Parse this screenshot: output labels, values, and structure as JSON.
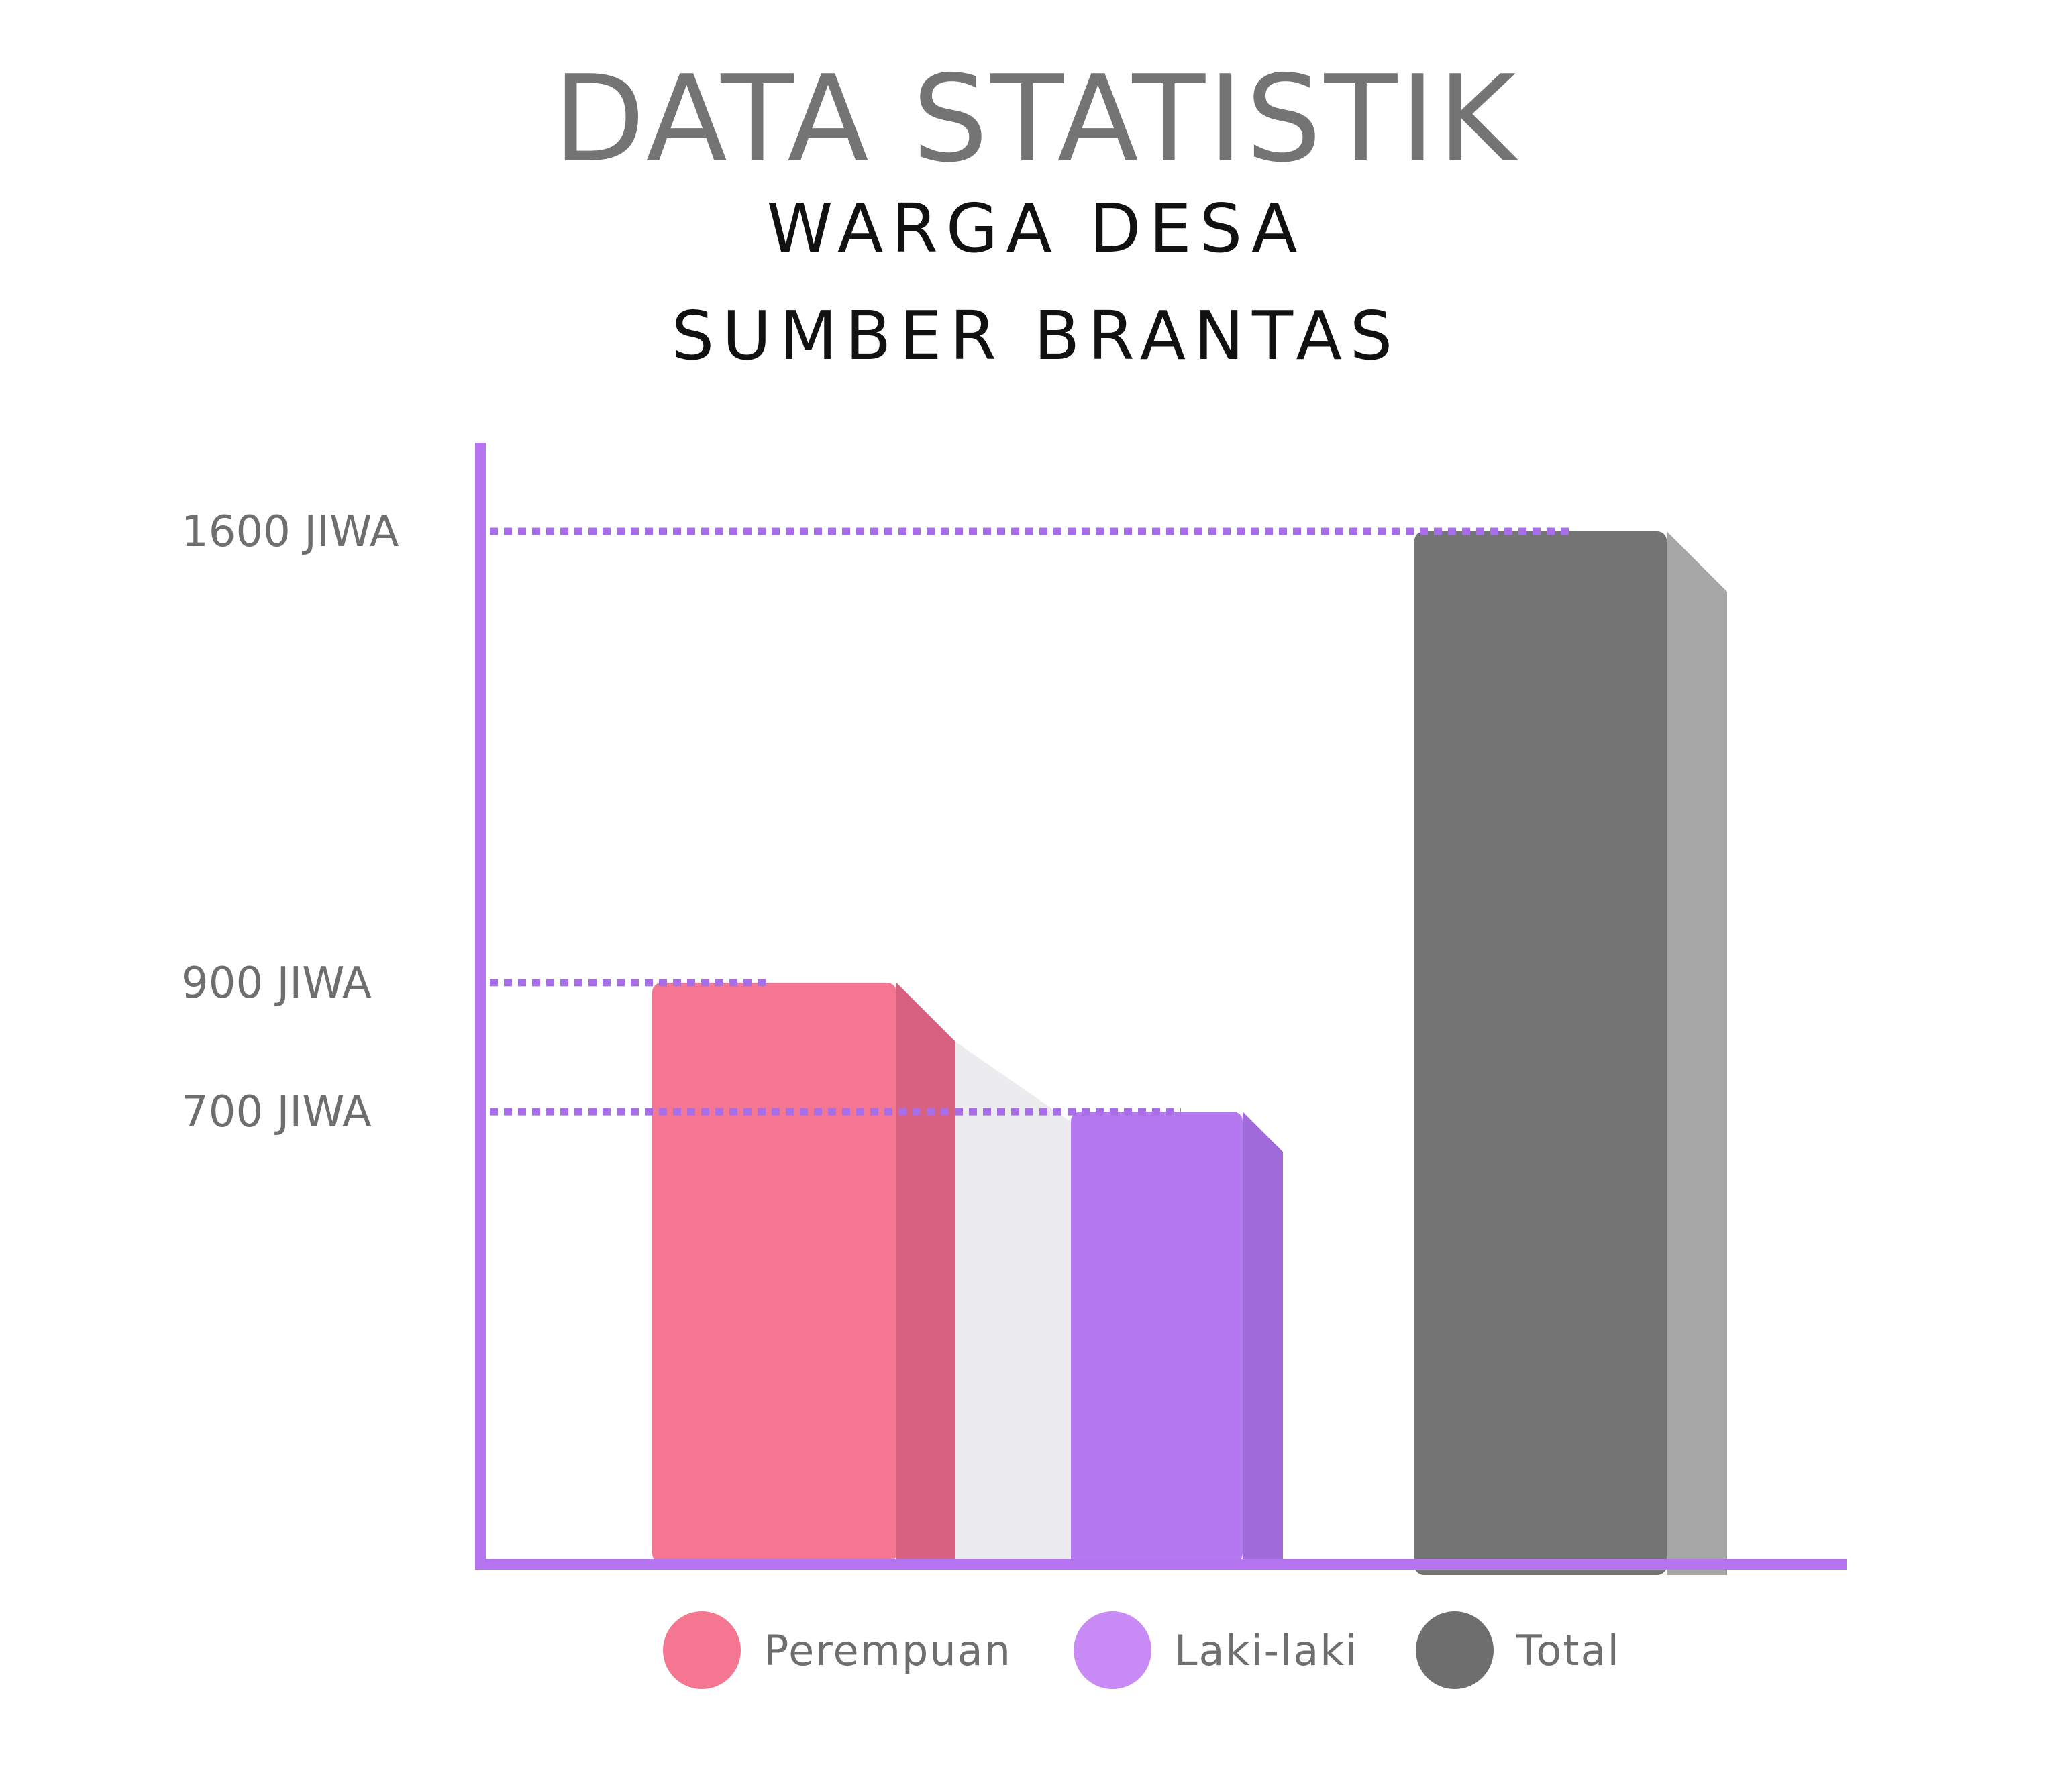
{
  "title": "DATA STATISTIK",
  "subtitle_line1": "WARGA DESA",
  "subtitle_line2": "SUMBER BRANTAS",
  "colors": {
    "axis": "#b574f0",
    "guide": "#a86ee8",
    "label": "#6e6e6e",
    "shadow": "#ececee",
    "perempuan_front": "#f47690",
    "perempuan_side": "#d8617f",
    "laki_front": "#b678f0",
    "laki_side": "#a06bd8",
    "laki_back": "#a970e4",
    "total_front": "#747474",
    "total_side": "#a6a6a6",
    "legend_laki": "#c88af5"
  },
  "chart_data": {
    "type": "bar",
    "title": "DATA STATISTIK WARGA DESA SUMBER BRANTAS",
    "categories": [
      "Perempuan",
      "Laki-laki",
      "Total"
    ],
    "values": [
      900,
      700,
      1600
    ],
    "unit": "JIWA",
    "y_ticks": [
      {
        "value": 1600,
        "label": "1600 JIWA"
      },
      {
        "value": 900,
        "label": "900  JIWA"
      },
      {
        "value": 700,
        "label": "700  JIWA"
      }
    ],
    "legend": [
      {
        "label": "Perempuan",
        "color": "#f47690"
      },
      {
        "label": "Laki-laki",
        "color": "#c88af5"
      },
      {
        "label": "Total",
        "color": "#6e6e6e"
      }
    ],
    "legend_position": "bottom",
    "grid": false
  }
}
